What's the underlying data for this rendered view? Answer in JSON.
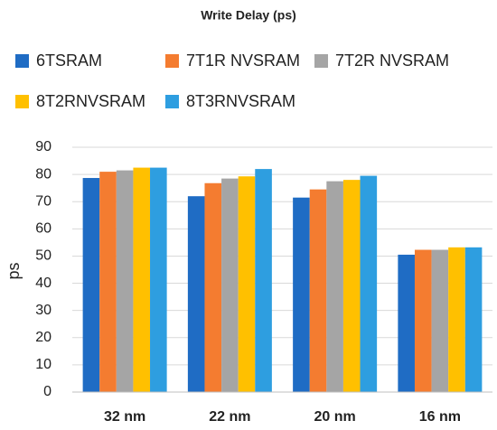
{
  "chart_data": {
    "type": "bar",
    "title": "Write Delay (ps)",
    "y_label": "ps",
    "categories": [
      "32 nm",
      "22 nm",
      "20 nm",
      "16 nm"
    ],
    "series": [
      {
        "name": "6TSRAM",
        "color": "#1f6cc4",
        "values": [
          78.7,
          72,
          71.5,
          50.5
        ]
      },
      {
        "name": "7T1R NVSRAM",
        "color": "#f47c30",
        "values": [
          81,
          76.8,
          74.5,
          52.3
        ]
      },
      {
        "name": "7T2R NVSRAM",
        "color": "#a5a5a5",
        "values": [
          81.5,
          78.5,
          77.5,
          52.3
        ]
      },
      {
        "name": "8T2RNVSRAM",
        "color": "#ffc000",
        "values": [
          82.5,
          79.3,
          78,
          53.2
        ]
      },
      {
        "name": "8T3RNVSRAM",
        "color": "#2e9ee0",
        "values": [
          82.5,
          82,
          79.5,
          53.2
        ]
      }
    ],
    "ylim": [
      0,
      90
    ],
    "yticks": [
      0,
      10,
      20,
      30,
      40,
      50,
      60,
      70,
      80,
      90
    ],
    "grid": true,
    "legend": "top"
  }
}
